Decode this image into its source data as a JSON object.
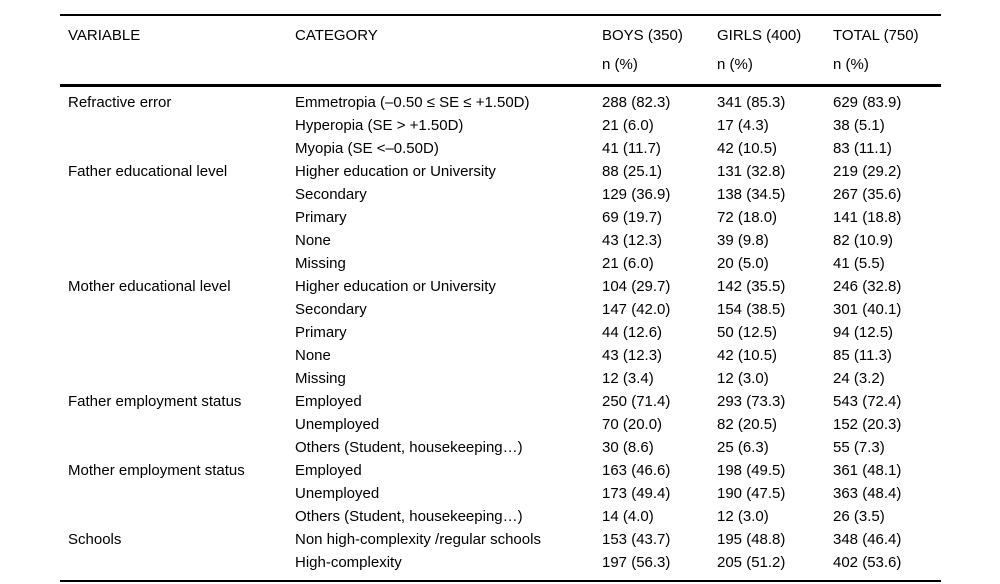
{
  "table": {
    "columns": [
      "VARIABLE",
      "CATEGORY",
      "BOYS (350)",
      "GIRLS (400)",
      "TOTAL (750)"
    ],
    "subheader": {
      "label": "n (%)"
    },
    "groups": [
      {
        "variable": "Refractive error",
        "rows": [
          {
            "category": "Emmetropia (–0.50 ≤ SE ≤ +1.50D)",
            "boys": "288 (82.3)",
            "girls": "341 (85.3)",
            "total": "629 (83.9)"
          },
          {
            "category": "Hyperopia (SE > +1.50D)",
            "boys": "21 (6.0)",
            "girls": "17 (4.3)",
            "total": "38 (5.1)"
          },
          {
            "category": "Myopia (SE <–0.50D)",
            "boys": "41 (11.7)",
            "girls": "42 (10.5)",
            "total": "83 (11.1)"
          }
        ]
      },
      {
        "variable": "Father educational level",
        "rows": [
          {
            "category": "Higher education or University",
            "boys": "88 (25.1)",
            "girls": "131 (32.8)",
            "total": "219 (29.2)"
          },
          {
            "category": "Secondary",
            "boys": "129 (36.9)",
            "girls": "138 (34.5)",
            "total": "267 (35.6)"
          },
          {
            "category": "Primary",
            "boys": "69 (19.7)",
            "girls": "72 (18.0)",
            "total": "141 (18.8)"
          },
          {
            "category": "None",
            "boys": "43 (12.3)",
            "girls": "39 (9.8)",
            "total": "82 (10.9)"
          },
          {
            "category": "Missing",
            "boys": "21 (6.0)",
            "girls": "20 (5.0)",
            "total": "41 (5.5)"
          }
        ]
      },
      {
        "variable": "Mother educational level",
        "rows": [
          {
            "category": "Higher education or University",
            "boys": "104 (29.7)",
            "girls": "142 (35.5)",
            "total": "246 (32.8)"
          },
          {
            "category": "Secondary",
            "boys": "147 (42.0)",
            "girls": "154 (38.5)",
            "total": "301 (40.1)"
          },
          {
            "category": "Primary",
            "boys": "44 (12.6)",
            "girls": "50 (12.5)",
            "total": "94 (12.5)"
          },
          {
            "category": "None",
            "boys": "43 (12.3)",
            "girls": "42 (10.5)",
            "total": "85 (11.3)"
          },
          {
            "category": "Missing",
            "boys": "12 (3.4)",
            "girls": "12 (3.0)",
            "total": "24 (3.2)"
          }
        ]
      },
      {
        "variable": "Father employment status",
        "rows": [
          {
            "category": "Employed",
            "boys": "250 (71.4)",
            "girls": "293 (73.3)",
            "total": "543 (72.4)"
          },
          {
            "category": "Unemployed",
            "boys": "70 (20.0)",
            "girls": "82 (20.5)",
            "total": "152 (20.3)"
          },
          {
            "category": "Others (Student, housekeeping…)",
            "boys": "30 (8.6)",
            "girls": "25 (6.3)",
            "total": "55 (7.3)"
          }
        ]
      },
      {
        "variable": "Mother employment status",
        "rows": [
          {
            "category": "Employed",
            "boys": "163 (46.6)",
            "girls": "198 (49.5)",
            "total": "361 (48.1)"
          },
          {
            "category": "Unemployed",
            "boys": "173 (49.4)",
            "girls": "190 (47.5)",
            "total": "363 (48.4)"
          },
          {
            "category": "Others (Student, housekeeping…)",
            "boys": "14 (4.0)",
            "girls": "12 (3.0)",
            "total": "26 (3.5)"
          }
        ]
      },
      {
        "variable": "Schools",
        "rows": [
          {
            "category": "Non high-complexity /regular schools",
            "boys": "153 (43.7)",
            "girls": "195 (48.8)",
            "total": "348 (46.4)"
          },
          {
            "category": "High-complexity",
            "boys": "197 (56.3)",
            "girls": "205 (51.2)",
            "total": "402 (53.6)"
          }
        ]
      }
    ]
  }
}
